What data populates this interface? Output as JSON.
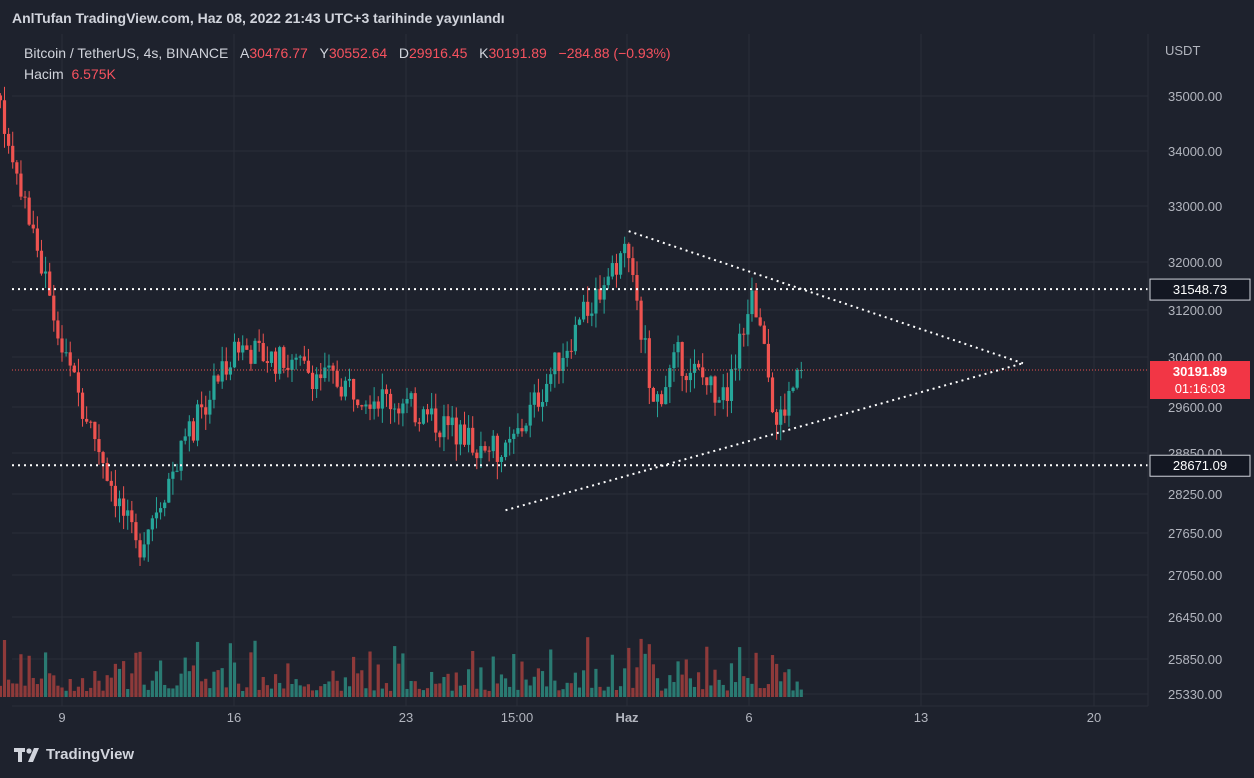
{
  "header": {
    "published": "AnlTufan TradingView.com, Haz 08, 2022 21:43 UTC+3 tarihinde yayınlandı"
  },
  "legend": {
    "symbol": "Bitcoin / TetherUS, 4s, BINANCE",
    "open_label": "A",
    "open": "30476.77",
    "high_label": "Y",
    "high": "30552.64",
    "low_label": "D",
    "low": "29916.45",
    "close_label": "K",
    "close": "30191.89",
    "change": "−284.88 (−0.93%)",
    "volume_label": "Hacim",
    "volume": "6.575K"
  },
  "footer": {
    "brand": "TradingView"
  },
  "colors": {
    "background": "#1e222d",
    "up": "#26a69a",
    "down": "#ef5350",
    "vol_up": "#2a7a72",
    "vol_down": "#8e3a3a",
    "grid": "#2a2e39",
    "price_label": "#f23645"
  },
  "chart_data": {
    "type": "candlestick",
    "currency": "USDT",
    "y_ticks": [
      "35000.00",
      "34000.00",
      "33000.00",
      "32000.00",
      "31200.00",
      "30400.00",
      "29600.00",
      "28850.00",
      "28250.00",
      "27650.00",
      "27050.00",
      "26450.00",
      "25850.00",
      "25330.00"
    ],
    "x_ticks": [
      "9",
      "16",
      "23",
      "15:00",
      "Haz",
      "6",
      "13",
      "20"
    ],
    "horizontal_levels": [
      {
        "value": 31548.73,
        "label": "31548.73"
      },
      {
        "value": 28671.09,
        "label": "28671.09"
      }
    ],
    "last_price": {
      "value": 30191.89,
      "label": "30191.89",
      "countdown": "01:16:03"
    },
    "triangle": {
      "upper": [
        {
          "date": "2022-06-01",
          "price": 32550
        },
        {
          "date": "2022-06-17",
          "price": 30300
        }
      ],
      "lower": [
        {
          "date": "2022-05-27",
          "price": 28000
        },
        {
          "date": "2022-06-17",
          "price": 30300
        }
      ]
    },
    "key_points": [
      {
        "date": "2022-05-06",
        "price": 35700
      },
      {
        "date": "2022-05-09",
        "price": 30500
      },
      {
        "date": "2022-05-12",
        "price": 27400
      },
      {
        "date": "2022-05-16",
        "price": 30600
      },
      {
        "date": "2022-05-23",
        "price": 29600
      },
      {
        "date": "2022-05-27",
        "price": 28800
      },
      {
        "date": "2022-05-31",
        "price": 31700
      },
      {
        "date": "2022-06-01",
        "price": 32300
      },
      {
        "date": "2022-06-02",
        "price": 29600
      },
      {
        "date": "2022-06-03",
        "price": 30400
      },
      {
        "date": "2022-06-05",
        "price": 29700
      },
      {
        "date": "2022-06-06",
        "price": 31600
      },
      {
        "date": "2022-06-07",
        "price": 29300
      },
      {
        "date": "2022-06-08",
        "price": 30200
      }
    ]
  }
}
